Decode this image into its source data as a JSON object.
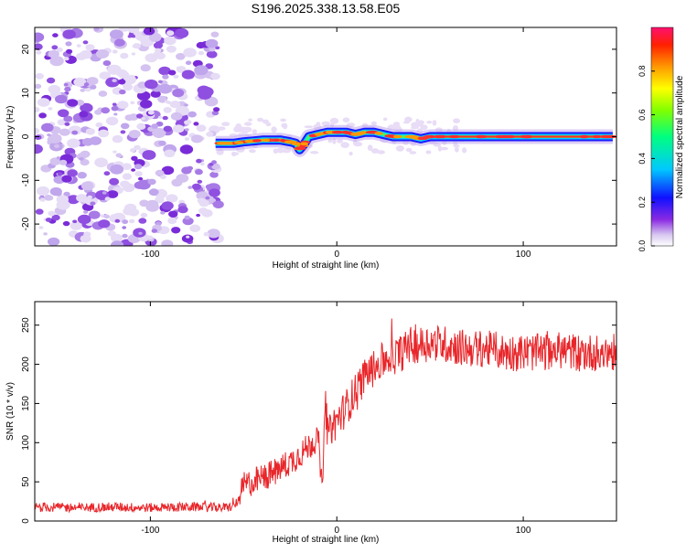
{
  "figure": {
    "title": "S196.2025.338.13.58.E05"
  },
  "chart_data": [
    {
      "type": "heatmap",
      "name": "spectrogram",
      "xlabel": "Height of straight line (km)",
      "ylabel": "Frequency (Hz)",
      "xlim": [
        -162,
        150
      ],
      "ylim": [
        -25,
        25
      ],
      "xticks": [
        -100,
        0,
        100
      ],
      "yticks": [
        -20,
        -10,
        0,
        10,
        20
      ],
      "noise_region_x": [
        -162,
        -63
      ],
      "signal_track": {
        "x": [
          -65,
          -60,
          -55,
          -50,
          -45,
          -40,
          -35,
          -30,
          -25,
          -22,
          -20,
          -18,
          -15,
          -10,
          -5,
          0,
          5,
          10,
          15,
          20,
          30,
          40,
          45,
          50,
          60,
          80,
          100,
          120,
          140,
          148
        ],
        "freq": [
          -1.5,
          -1.5,
          -1.5,
          -1.2,
          -1.0,
          -0.8,
          -0.8,
          -0.8,
          -1.2,
          -1.5,
          -3.0,
          -2.0,
          0.0,
          0.5,
          1.0,
          1.0,
          1.0,
          0.5,
          1.0,
          1.0,
          0.0,
          0.0,
          -0.5,
          0.0,
          0.0,
          0.0,
          0.0,
          0.0,
          0.0,
          0.0
        ]
      },
      "colorbar": {
        "label": "Normalized spectral amplitude",
        "range": [
          0,
          1
        ],
        "ticks": [
          "0.0",
          "0.2",
          "0.4",
          "0.6",
          "0.8"
        ]
      }
    },
    {
      "type": "line",
      "name": "snr",
      "xlabel": "Height of straight line (km)",
      "ylabel": "SNR (10 * v/v)",
      "xlim": [
        -162,
        150
      ],
      "ylim": [
        0,
        280
      ],
      "xticks": [
        -100,
        0,
        100
      ],
      "yticks": [
        0,
        50,
        100,
        150,
        200,
        250
      ],
      "color": "#e8262a",
      "series": [
        {
          "name": "SNR",
          "x": [
            -162,
            -140,
            -120,
            -100,
            -80,
            -60,
            -55,
            -52,
            -50,
            -45,
            -40,
            -35,
            -30,
            -25,
            -20,
            -15,
            -10,
            -8,
            -6,
            -5,
            0,
            5,
            10,
            15,
            20,
            25,
            30,
            35,
            40,
            45,
            50,
            60,
            70,
            80,
            90,
            100,
            110,
            120,
            130,
            140,
            150
          ],
          "y": [
            18,
            17,
            18,
            17,
            18,
            17,
            19,
            30,
            45,
            50,
            55,
            60,
            68,
            75,
            85,
            95,
            108,
            40,
            150,
            115,
            128,
            145,
            165,
            185,
            195,
            205,
            210,
            215,
            225,
            225,
            228,
            225,
            220,
            220,
            215,
            215,
            215,
            218,
            215,
            215,
            215
          ]
        }
      ]
    }
  ]
}
